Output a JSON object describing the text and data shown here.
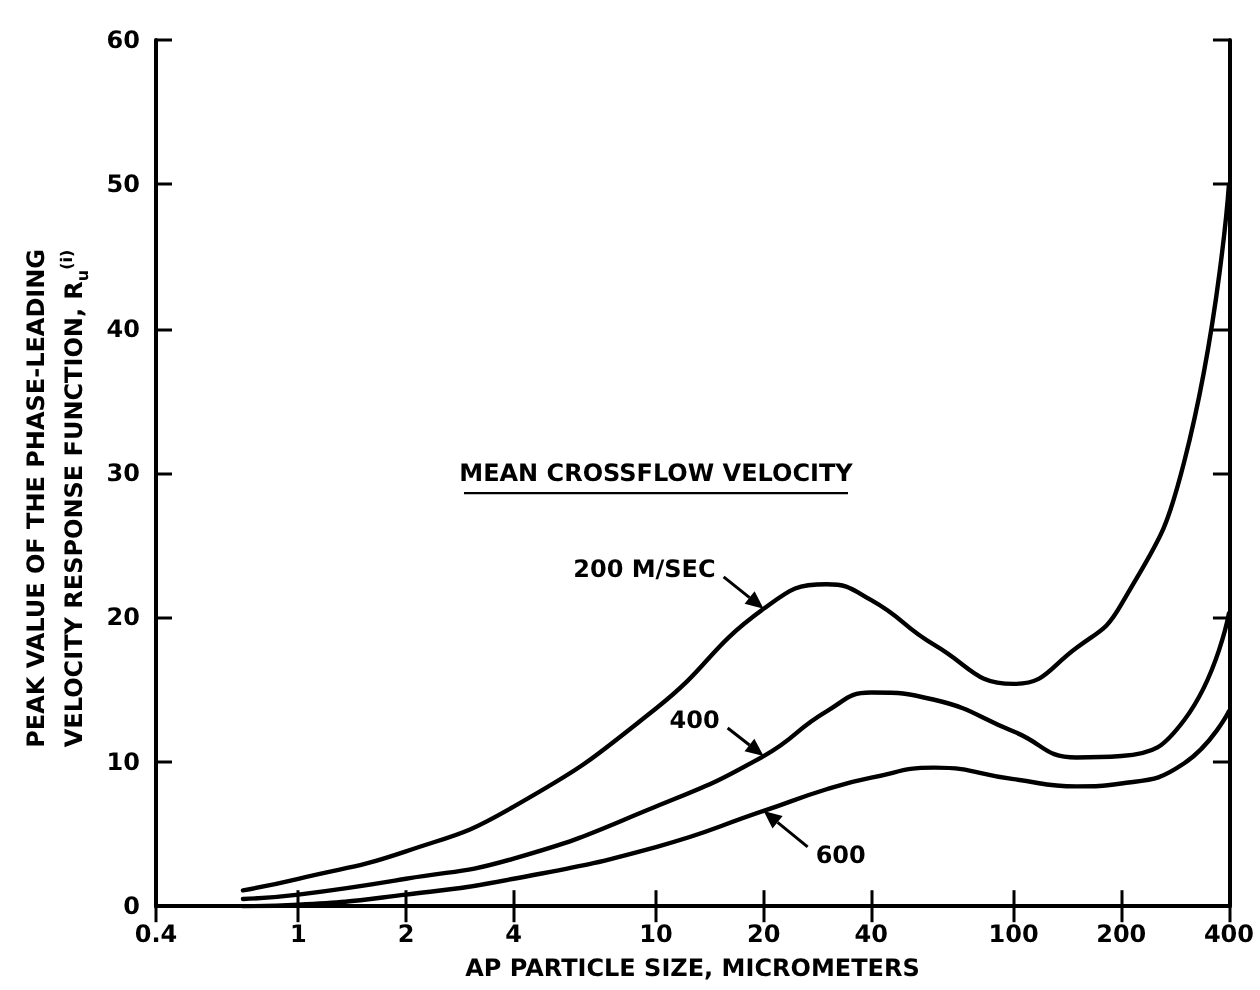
{
  "chart_data": {
    "type": "line",
    "xlabel": "AP PARTICLE SIZE, MICROMETERS",
    "ylabel": "PEAK VALUE OF THE PHASE-LEADING\nVELOCITY RESPONSE FUNCTION, R$_{u}$$^{(i)}$",
    "legend_title": "MEAN CROSSFLOW VELOCITY",
    "log": "x",
    "grid": false,
    "marker": "none",
    "line_style": "solid",
    "xlim": [
      0.4,
      400
    ],
    "xticks": [
      0.4,
      1,
      2,
      4,
      10,
      20,
      40,
      100,
      200,
      400
    ],
    "ylim": [
      0,
      60
    ],
    "yticks": [
      0,
      10,
      20,
      30,
      40,
      50,
      60
    ],
    "x": [
      0.7,
      1,
      2,
      4,
      10,
      20,
      30,
      40,
      60,
      100,
      150,
      200,
      300,
      400
    ],
    "series": [
      {
        "name": "200 M/SEC",
        "color": "#000000",
        "values": [
          1.1,
          1.9,
          3.8,
          6.9,
          13.7,
          20.6,
          22.3,
          21.2,
          18.1,
          15.4,
          17.9,
          20.9,
          30.8,
          50
        ]
      },
      {
        "name": "400",
        "color": "#000000",
        "values": [
          0.5,
          0.8,
          1.9,
          3.3,
          6.9,
          10.4,
          13.5,
          14.8,
          14.3,
          12.1,
          10.3,
          10.4,
          12.9,
          20.3
        ]
      },
      {
        "name": "600",
        "color": "#000000",
        "values": [
          0,
          0.1,
          0.8,
          1.9,
          4.1,
          6.6,
          8.1,
          8.9,
          9.6,
          8.8,
          8.3,
          8.5,
          9.9,
          13.5
        ]
      }
    ]
  }
}
